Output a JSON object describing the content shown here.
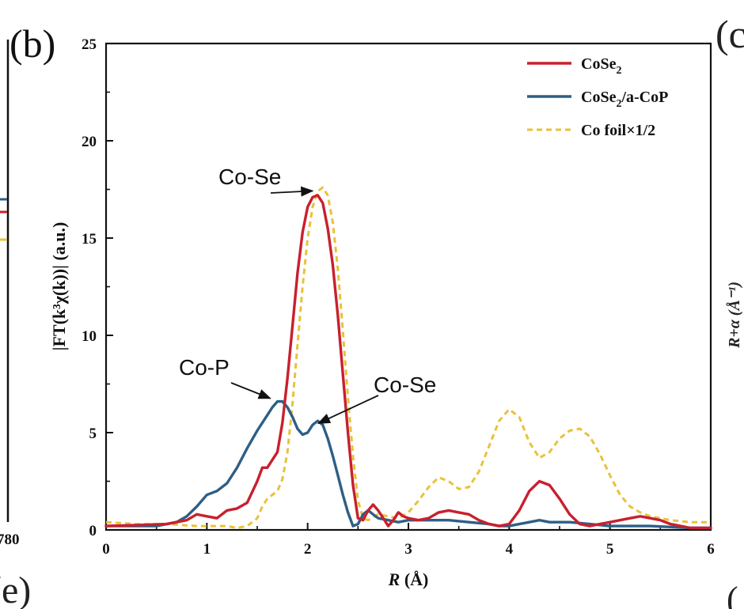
{
  "panel_label": "(b)",
  "neighbor": {
    "left_tick": "780",
    "right_panel_label": "(c",
    "right_axis_fragment": "R+α (Å⁻¹)",
    "bottom_left_label": "(e)",
    "bottom_right_label": "("
  },
  "colors": {
    "cose2": "#c8202e",
    "cose2_acop": "#2e5f86",
    "co_foil": "#e8c23a",
    "axis": "#111111"
  },
  "chart_data": {
    "type": "line",
    "title": "",
    "xlabel": "R (Å)",
    "xlabel_italic": "R",
    "xlabel_unit": " (Å)",
    "ylabel": "|FT(k³χ(k))| (a.u.)",
    "xlim": [
      0,
      6
    ],
    "ylim": [
      0,
      25
    ],
    "x_ticks": [
      "0",
      "1",
      "2",
      "3",
      "4",
      "5",
      "6"
    ],
    "y_ticks": [
      "0",
      "5",
      "10",
      "15",
      "20",
      "25"
    ],
    "legend_position": "top-right",
    "series": [
      {
        "name": "CoSe₂",
        "name_base": "CoSe",
        "name_sub": "2",
        "name_suffix": "",
        "color": "#c8202e",
        "dash": "solid",
        "x": [
          0,
          0.3,
          0.6,
          0.8,
          0.9,
          1.0,
          1.1,
          1.2,
          1.3,
          1.4,
          1.5,
          1.55,
          1.6,
          1.65,
          1.7,
          1.75,
          1.8,
          1.85,
          1.9,
          1.95,
          2.0,
          2.05,
          2.1,
          2.15,
          2.2,
          2.25,
          2.3,
          2.35,
          2.4,
          2.45,
          2.5,
          2.55,
          2.6,
          2.65,
          2.7,
          2.75,
          2.8,
          2.85,
          2.9,
          2.95,
          3.0,
          3.1,
          3.2,
          3.3,
          3.4,
          3.5,
          3.6,
          3.7,
          3.8,
          3.9,
          4.0,
          4.1,
          4.2,
          4.3,
          4.4,
          4.5,
          4.6,
          4.7,
          4.8,
          4.9,
          5.0,
          5.1,
          5.2,
          5.3,
          5.4,
          5.5,
          5.6,
          5.7,
          5.8,
          5.9,
          6.0
        ],
        "y": [
          0.2,
          0.25,
          0.3,
          0.5,
          0.8,
          0.7,
          0.6,
          1.0,
          1.1,
          1.4,
          2.5,
          3.2,
          3.2,
          3.6,
          4.0,
          5.5,
          7.8,
          10.5,
          13.2,
          15.3,
          16.6,
          17.1,
          17.2,
          16.8,
          15.5,
          13.6,
          11.0,
          8.0,
          5.0,
          2.3,
          0.6,
          0.5,
          1.0,
          1.3,
          1.0,
          0.6,
          0.2,
          0.5,
          0.9,
          0.7,
          0.6,
          0.5,
          0.6,
          0.9,
          1.0,
          0.9,
          0.8,
          0.5,
          0.3,
          0.2,
          0.3,
          1.0,
          2.0,
          2.5,
          2.3,
          1.6,
          0.8,
          0.3,
          0.2,
          0.3,
          0.4,
          0.5,
          0.6,
          0.7,
          0.6,
          0.5,
          0.3,
          0.2,
          0.1,
          0.1,
          0.1
        ]
      },
      {
        "name": "CoSe₂/a-CoP",
        "name_base": "CoSe",
        "name_sub": "2",
        "name_suffix": "/a-CoP",
        "color": "#2e5f86",
        "dash": "solid",
        "x": [
          0,
          0.3,
          0.5,
          0.7,
          0.8,
          0.9,
          1.0,
          1.1,
          1.2,
          1.3,
          1.4,
          1.5,
          1.6,
          1.65,
          1.7,
          1.75,
          1.8,
          1.85,
          1.9,
          1.95,
          2.0,
          2.05,
          2.1,
          2.15,
          2.2,
          2.25,
          2.3,
          2.35,
          2.4,
          2.45,
          2.5,
          2.55,
          2.6,
          2.65,
          2.7,
          2.8,
          2.9,
          3.0,
          3.2,
          3.4,
          3.6,
          3.8,
          3.9,
          4.0,
          4.1,
          4.2,
          4.3,
          4.4,
          4.6,
          4.8,
          5.0,
          5.2,
          5.4,
          5.6,
          5.8,
          6.0
        ],
        "y": [
          0.2,
          0.2,
          0.2,
          0.4,
          0.7,
          1.2,
          1.8,
          2.0,
          2.4,
          3.2,
          4.2,
          5.1,
          5.9,
          6.3,
          6.6,
          6.6,
          6.3,
          5.8,
          5.2,
          4.9,
          5.0,
          5.4,
          5.6,
          5.4,
          4.7,
          3.8,
          2.8,
          1.8,
          0.9,
          0.2,
          0.3,
          0.8,
          1.0,
          0.8,
          0.6,
          0.5,
          0.4,
          0.5,
          0.5,
          0.5,
          0.4,
          0.3,
          0.2,
          0.2,
          0.3,
          0.4,
          0.5,
          0.4,
          0.4,
          0.3,
          0.2,
          0.2,
          0.2,
          0.15,
          0.1,
          0.1
        ]
      },
      {
        "name": "Co foil×1/2",
        "name_base": "Co foil×1/2",
        "name_sub": "",
        "name_suffix": "",
        "color": "#e8c23a",
        "dash": "dashed",
        "x": [
          0,
          0.3,
          0.6,
          0.9,
          1.2,
          1.3,
          1.4,
          1.5,
          1.55,
          1.6,
          1.65,
          1.7,
          1.75,
          1.8,
          1.85,
          1.9,
          1.95,
          2.0,
          2.05,
          2.1,
          2.15,
          2.2,
          2.25,
          2.3,
          2.35,
          2.4,
          2.45,
          2.5,
          2.55,
          2.6,
          2.7,
          2.8,
          2.9,
          3.0,
          3.1,
          3.2,
          3.3,
          3.4,
          3.5,
          3.6,
          3.7,
          3.8,
          3.9,
          4.0,
          4.1,
          4.2,
          4.3,
          4.4,
          4.5,
          4.6,
          4.7,
          4.8,
          4.9,
          5.0,
          5.1,
          5.2,
          5.3,
          5.4,
          5.5,
          5.6,
          5.7,
          5.8,
          5.9,
          6.0
        ],
        "y": [
          0.4,
          0.3,
          0.3,
          0.2,
          0.2,
          0.1,
          0.2,
          0.6,
          1.2,
          1.6,
          1.8,
          2.0,
          2.6,
          4.0,
          6.5,
          9.5,
          12.5,
          15.0,
          16.6,
          17.4,
          17.6,
          17.2,
          15.8,
          13.4,
          10.2,
          6.8,
          3.8,
          1.5,
          0.6,
          0.5,
          0.8,
          0.7,
          0.6,
          0.9,
          1.5,
          2.2,
          2.7,
          2.5,
          2.1,
          2.2,
          3.0,
          4.3,
          5.6,
          6.2,
          5.8,
          4.5,
          3.7,
          4.0,
          4.7,
          5.1,
          5.2,
          4.8,
          3.9,
          2.8,
          1.8,
          1.2,
          0.9,
          0.7,
          0.6,
          0.5,
          0.45,
          0.4,
          0.4,
          0.4
        ]
      }
    ],
    "annotations": [
      {
        "text": "Co-Se",
        "target_x": 2.08,
        "target_y": 17.1
      },
      {
        "text": "Co-P",
        "target_x": 1.66,
        "target_y": 6.6
      },
      {
        "text": "Co-Se",
        "target_x": 2.06,
        "target_y": 5.4
      }
    ]
  }
}
